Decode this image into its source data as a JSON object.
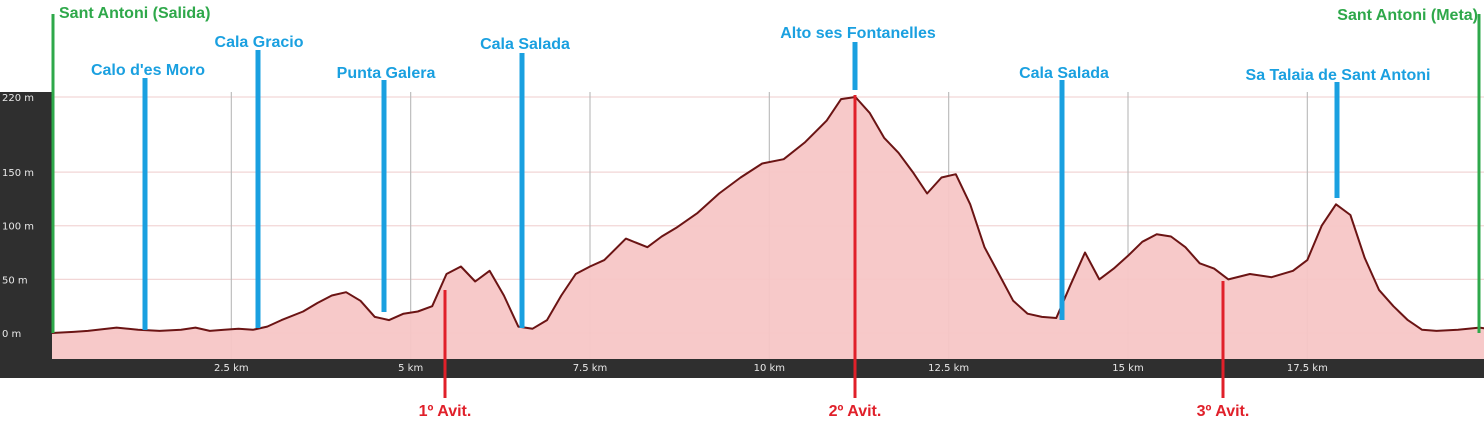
{
  "chart_data": {
    "type": "area",
    "title": "",
    "xlabel": "",
    "ylabel": "",
    "x_unit": "km",
    "y_unit": "m",
    "xlim": [
      0,
      20.1
    ],
    "ylim": [
      -20,
      220
    ],
    "x_ticks": [
      {
        "value": 2.5,
        "label": "2.5 km"
      },
      {
        "value": 5,
        "label": "5 km"
      },
      {
        "value": 7.5,
        "label": "7.5 km"
      },
      {
        "value": 10,
        "label": "10 km"
      },
      {
        "value": 12.5,
        "label": "12.5 km"
      },
      {
        "value": 15,
        "label": "15 km"
      },
      {
        "value": 17.5,
        "label": "17.5 km"
      }
    ],
    "y_ticks": [
      {
        "value": 0,
        "label": "0 m"
      },
      {
        "value": 50,
        "label": "50 m"
      },
      {
        "value": 100,
        "label": "100 m"
      },
      {
        "value": 150,
        "label": "150 m"
      },
      {
        "value": 220,
        "label": "220 m"
      }
    ],
    "grid": true,
    "colors": {
      "area_fill": "#f7c6c6",
      "line": "#6b1414",
      "axis_bg": "#2f2f2f",
      "start_finish": "#2ea84a",
      "landmark": "#1aa0e0",
      "refreshment": "#e0202a"
    },
    "profile": {
      "distance_km": [
        0,
        0.3,
        0.5,
        0.9,
        1.2,
        1.5,
        1.8,
        2.0,
        2.2,
        2.4,
        2.6,
        2.8,
        3.0,
        3.2,
        3.5,
        3.7,
        3.9,
        4.1,
        4.3,
        4.5,
        4.7,
        4.9,
        5.1,
        5.3,
        5.5,
        5.7,
        5.9,
        6.1,
        6.3,
        6.5,
        6.7,
        6.9,
        7.1,
        7.3,
        7.5,
        7.7,
        8.0,
        8.3,
        8.5,
        8.7,
        9.0,
        9.3,
        9.6,
        9.9,
        10.2,
        10.5,
        10.8,
        11.0,
        11.2,
        11.4,
        11.6,
        11.8,
        12.0,
        12.2,
        12.4,
        12.6,
        12.8,
        13.0,
        13.2,
        13.4,
        13.6,
        13.8,
        14.0,
        14.2,
        14.4,
        14.6,
        14.8,
        15.0,
        15.2,
        15.4,
        15.6,
        15.8,
        16.0,
        16.2,
        16.4,
        16.7,
        17.0,
        17.3,
        17.5,
        17.7,
        17.9,
        18.1,
        18.3,
        18.5,
        18.7,
        18.9,
        19.1,
        19.3,
        19.6,
        19.9,
        20.1
      ],
      "elevation_m": [
        0,
        1,
        2,
        5,
        3,
        2,
        3,
        5,
        2,
        3,
        4,
        3,
        6,
        12,
        20,
        28,
        35,
        38,
        30,
        15,
        12,
        18,
        20,
        25,
        55,
        62,
        48,
        58,
        35,
        6,
        4,
        12,
        35,
        55,
        62,
        68,
        88,
        80,
        90,
        98,
        112,
        130,
        145,
        158,
        162,
        178,
        198,
        218,
        220,
        205,
        182,
        168,
        150,
        130,
        145,
        148,
        120,
        80,
        55,
        30,
        18,
        15,
        14,
        45,
        75,
        50,
        60,
        72,
        85,
        92,
        90,
        80,
        65,
        60,
        50,
        55,
        52,
        58,
        68,
        100,
        120,
        110,
        70,
        40,
        25,
        12,
        3,
        2,
        3,
        5,
        3
      ]
    },
    "waypoints": [
      {
        "name": "Sant Antoni (Salida)",
        "km": 0,
        "kind": "start-finish"
      },
      {
        "name": "Calo d'es Moro",
        "km": 1.3,
        "kind": "landmark"
      },
      {
        "name": "Cala Gracio",
        "km": 2.9,
        "kind": "landmark"
      },
      {
        "name": "Punta Galera",
        "km": 4.6,
        "kind": "landmark"
      },
      {
        "name": "Cala Salada",
        "km": 6.5,
        "kind": "landmark"
      },
      {
        "name": "Alto ses Fontanelles",
        "km": 11.2,
        "kind": "landmark"
      },
      {
        "name": "Cala Salada",
        "km": 14.3,
        "kind": "landmark"
      },
      {
        "name": "Sa Talaia de Sant Antoni",
        "km": 18.2,
        "kind": "landmark"
      },
      {
        "name": "Sant Antoni (Meta)",
        "km": 20.1,
        "kind": "start-finish"
      }
    ],
    "refreshments": [
      {
        "name": "1º Avit.",
        "km": 5.5
      },
      {
        "name": "2º Avit.",
        "km": 11.2
      },
      {
        "name": "3º Avit.",
        "km": 16.5
      }
    ]
  }
}
